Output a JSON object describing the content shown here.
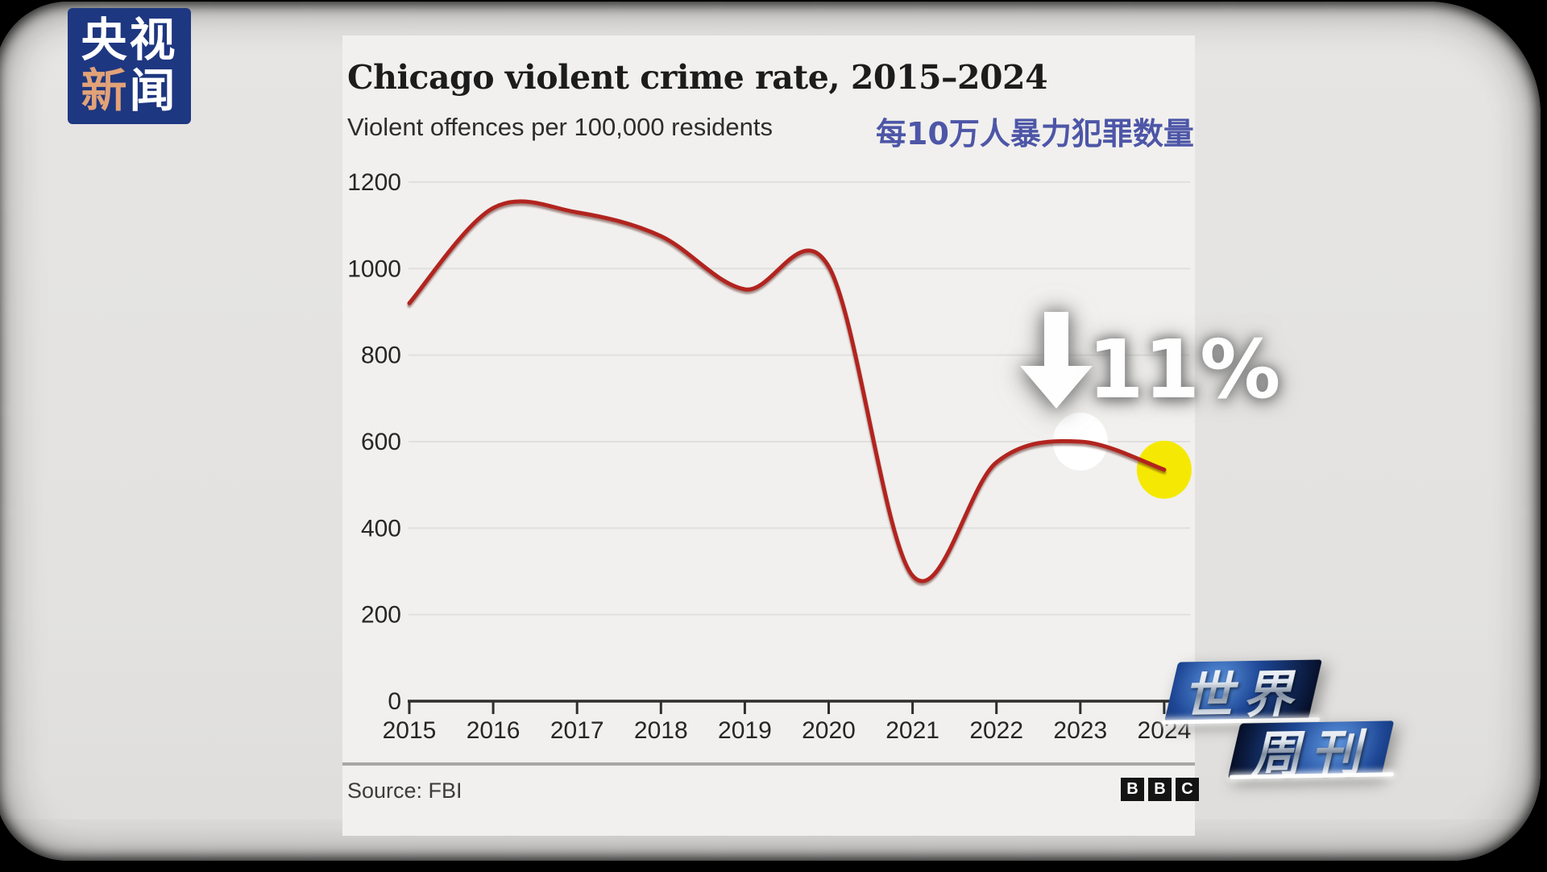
{
  "broadcaster_logo": {
    "line1": "央视",
    "line2_highlight": "新",
    "line2_rest": "闻",
    "bg_color": "#1e3781",
    "highlight_color": "#e2a278"
  },
  "chart": {
    "title": "Chicago violent crime rate, 2015–2024",
    "subtitle_en": "Violent offences per 100,000 residents",
    "subtitle_zh": "每10万人暴力犯罪数量",
    "subtitle_zh_color": "#4d56a7",
    "source": "Source: FBI",
    "bbc_letters": [
      "B",
      "B",
      "C"
    ],
    "annotation_pct": "11%"
  },
  "chart_data": {
    "type": "line",
    "title": "Chicago violent crime rate, 2015–2024",
    "ylabel": "Violent offences per 100,000 residents",
    "x": [
      2015,
      2016,
      2017,
      2018,
      2019,
      2020,
      2021,
      2022,
      2023,
      2024
    ],
    "series": [
      {
        "name": "Violent offences per 100,000 residents",
        "values": [
          920,
          1140,
          1130,
          1075,
          952,
          1005,
          290,
          552,
          600,
          535
        ]
      }
    ],
    "ylim": [
      0,
      1200
    ],
    "yticks": [
      0,
      200,
      400,
      600,
      800,
      1000,
      1200
    ],
    "grid": "horizontal",
    "legend": "none",
    "line_color": "#b2241f",
    "axis_color": "#2e2e2e",
    "grid_color": "#e0dfdd",
    "markers": [
      {
        "year": 2023,
        "value": 600,
        "color": "#ffffff"
      },
      {
        "year": 2024,
        "value": 535,
        "color": "#f5e903"
      }
    ],
    "annotation": {
      "symbol": "down-arrow",
      "text": "11%",
      "meaning": "decline 2023 to 2024"
    }
  },
  "watermark": {
    "line1": "世界",
    "line2": "周刊"
  }
}
